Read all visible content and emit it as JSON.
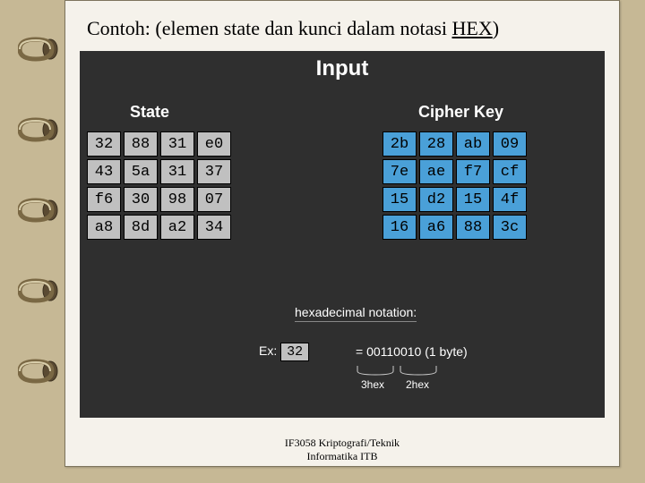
{
  "title_plain": "Contoh: (elemen state dan kunci dalam notasi ",
  "title_underline": "HEX",
  "title_tail": ")",
  "panel": {
    "heading": "Input",
    "state_label": "State",
    "cipher_label": "Cipher Key",
    "state_bg": "#c0c0c0",
    "cipher_bg": "#4aa0d8",
    "state": [
      [
        "32",
        "88",
        "31",
        "e0"
      ],
      [
        "43",
        "5a",
        "31",
        "37"
      ],
      [
        "f6",
        "30",
        "98",
        "07"
      ],
      [
        "a8",
        "8d",
        "a2",
        "34"
      ]
    ],
    "cipher": [
      [
        "2b",
        "28",
        "ab",
        "09"
      ],
      [
        "7e",
        "ae",
        "f7",
        "cf"
      ],
      [
        "15",
        "d2",
        "15",
        "4f"
      ],
      [
        "16",
        "a6",
        "88",
        "3c"
      ]
    ],
    "hex_note_label": "hexadecimal notation:",
    "ex_label": "Ex:",
    "ex_value": "32",
    "ex_binary": "= 00110010 (1 byte)",
    "brace_left": "3hex",
    "brace_right": "2hex"
  },
  "footer_line1": "IF3058 Kriptografi/Teknik",
  "footer_line2": "Informatika ITB",
  "colors": {
    "page_bg": "#c6b895",
    "paper_bg": "#f5f2eb",
    "panel_bg": "#2f2f2f",
    "ring_dark": "#6b5a3e",
    "ring_light": "#d4c9a8"
  },
  "ring_positions": [
    40,
    130,
    220,
    310,
    400
  ]
}
